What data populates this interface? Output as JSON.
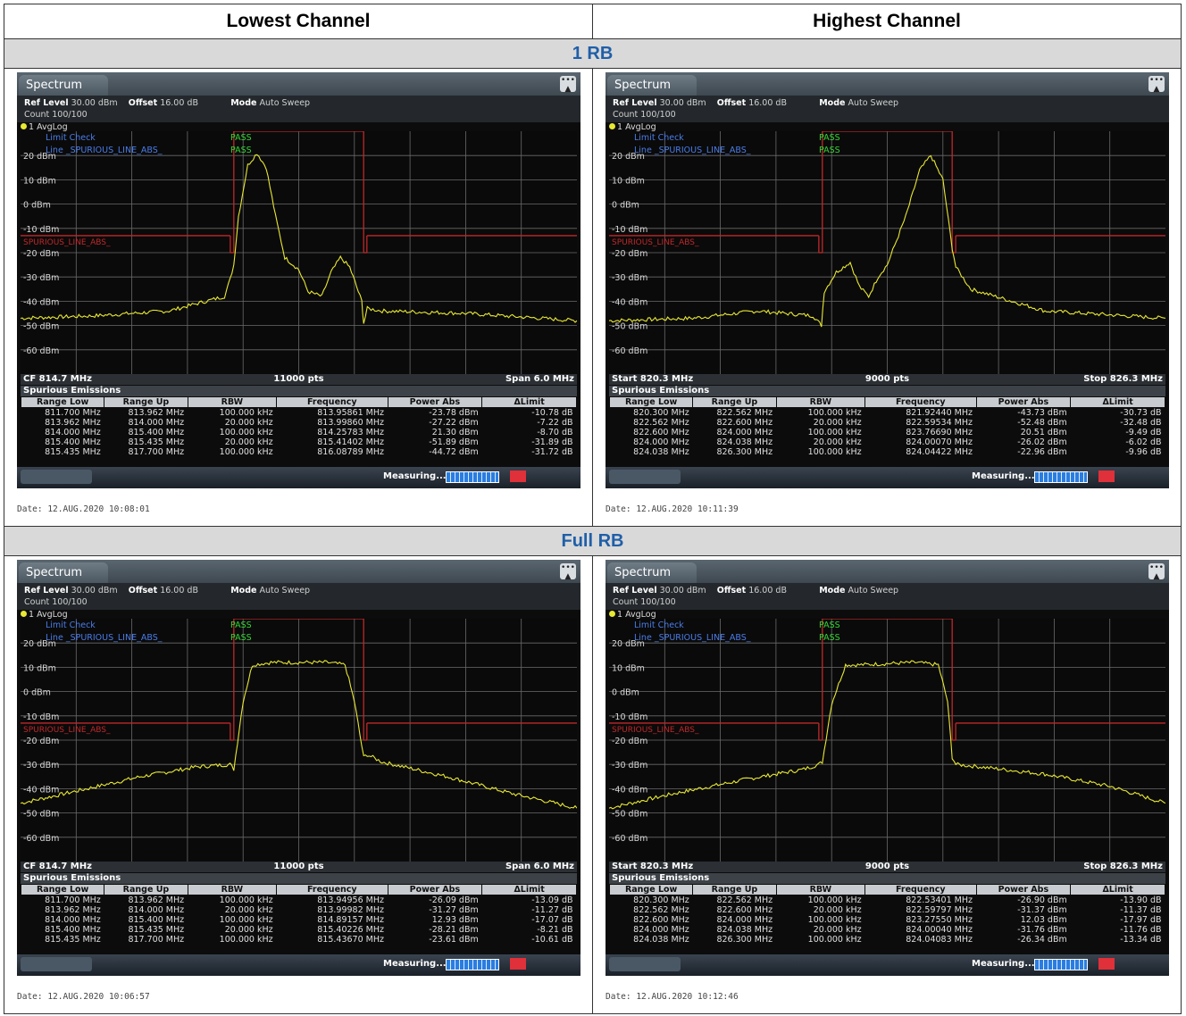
{
  "header": {
    "left": "Lowest Channel",
    "right": "Highest Channel"
  },
  "sections": [
    {
      "title": "1 RB",
      "panels": [
        0,
        1
      ]
    },
    {
      "title": "Full RB",
      "panels": [
        2,
        3
      ]
    }
  ],
  "colors": {
    "trace": "#e8e833",
    "limit": "#c0282a",
    "grid": "#6a6a6a",
    "pass": "#33d633",
    "label_blue": "#4a7de8"
  },
  "panels": [
    {
      "tab": "Spectrum",
      "ref_level_label": "Ref Level",
      "ref_level": "30.00 dBm",
      "offset_label": "Offset",
      "offset": "16.00 dB",
      "mode_label": "Mode",
      "mode": "Auto Sweep",
      "count": "Count 100/100",
      "trace": "1 AvgLog",
      "limit_check": "Limit Check",
      "limit_line": "Line _SPURIOUS_LINE_ABS_",
      "pass1": "PASS",
      "pass2": "PASS",
      "limit_label": "SPURIOUS_LINE_ABS_",
      "footer_left": "CF 814.7 MHz",
      "footer_center": "11000 pts",
      "footer_right": "Span 6.0 MHz",
      "spur_title": "Spurious Emissions",
      "status": "Measuring...",
      "date": "Date: 12.AUG.2020  10:08:01",
      "columns": [
        "Range Low",
        "Range Up",
        "RBW",
        "Frequency",
        "Power Abs",
        "ΔLimit"
      ],
      "rows": [
        [
          "811.700 MHz",
          "813.962 MHz",
          "100.000 kHz",
          "813.95861 MHz",
          "-23.78 dBm",
          "-10.78 dB"
        ],
        [
          "813.962 MHz",
          "814.000 MHz",
          "20.000 kHz",
          "813.99860 MHz",
          "-27.22 dBm",
          "-7.22 dB"
        ],
        [
          "814.000 MHz",
          "815.400 MHz",
          "100.000 kHz",
          "814.25783 MHz",
          "21.30 dBm",
          "-8.70 dB"
        ],
        [
          "815.400 MHz",
          "815.435 MHz",
          "20.000 kHz",
          "815.41402 MHz",
          "-51.89 dBm",
          "-31.89 dB"
        ],
        [
          "815.435 MHz",
          "817.700 MHz",
          "100.000 kHz",
          "816.08789 MHz",
          "-44.72 dBm",
          "-31.72 dB"
        ]
      ]
    },
    {
      "tab": "Spectrum",
      "ref_level_label": "Ref Level",
      "ref_level": "30.00 dBm",
      "offset_label": "Offset",
      "offset": "16.00 dB",
      "mode_label": "Mode",
      "mode": "Auto Sweep",
      "count": "Count 100/100",
      "trace": "1 AvgLog",
      "limit_check": "Limit Check",
      "limit_line": "Line _SPURIOUS_LINE_ABS_",
      "pass1": "PASS",
      "pass2": "PASS",
      "limit_label": "SPURIOUS_LINE_ABS_",
      "footer_left": "Start 820.3 MHz",
      "footer_center": "9000 pts",
      "footer_right": "Stop 826.3 MHz",
      "spur_title": "Spurious Emissions",
      "status": "Measuring...",
      "date": "Date: 12.AUG.2020  10:11:39",
      "columns": [
        "Range Low",
        "Range Up",
        "RBW",
        "Frequency",
        "Power Abs",
        "ΔLimit"
      ],
      "rows": [
        [
          "820.300 MHz",
          "822.562 MHz",
          "100.000 kHz",
          "821.92440 MHz",
          "-43.73 dBm",
          "-30.73 dB"
        ],
        [
          "822.562 MHz",
          "822.600 MHz",
          "20.000 kHz",
          "822.59534 MHz",
          "-52.48 dBm",
          "-32.48 dB"
        ],
        [
          "822.600 MHz",
          "824.000 MHz",
          "100.000 kHz",
          "823.76690 MHz",
          "20.51 dBm",
          "-9.49 dB"
        ],
        [
          "824.000 MHz",
          "824.038 MHz",
          "20.000 kHz",
          "824.00070 MHz",
          "-26.02 dBm",
          "-6.02 dB"
        ],
        [
          "824.038 MHz",
          "826.300 MHz",
          "100.000 kHz",
          "824.04422 MHz",
          "-22.96 dBm",
          "-9.96 dB"
        ]
      ]
    },
    {
      "tab": "Spectrum",
      "ref_level_label": "Ref Level",
      "ref_level": "30.00 dBm",
      "offset_label": "Offset",
      "offset": "16.00 dB",
      "mode_label": "Mode",
      "mode": "Auto Sweep",
      "count": "Count 100/100",
      "trace": "1 AvgLog",
      "limit_check": "Limit Check",
      "limit_line": "Line _SPURIOUS_LINE_ABS_",
      "pass1": "PASS",
      "pass2": "PASS",
      "limit_label": "SPURIOUS_LINE_ABS_",
      "footer_left": "CF 814.7 MHz",
      "footer_center": "11000 pts",
      "footer_right": "Span 6.0 MHz",
      "spur_title": "Spurious Emissions",
      "status": "Measuring...",
      "date": "Date: 12.AUG.2020  10:06:57",
      "columns": [
        "Range Low",
        "Range Up",
        "RBW",
        "Frequency",
        "Power Abs",
        "ΔLimit"
      ],
      "rows": [
        [
          "811.700 MHz",
          "813.962 MHz",
          "100.000 kHz",
          "813.94956 MHz",
          "-26.09 dBm",
          "-13.09 dB"
        ],
        [
          "813.962 MHz",
          "814.000 MHz",
          "20.000 kHz",
          "813.99982 MHz",
          "-31.27 dBm",
          "-11.27 dB"
        ],
        [
          "814.000 MHz",
          "815.400 MHz",
          "100.000 kHz",
          "814.89157 MHz",
          "12.93 dBm",
          "-17.07 dB"
        ],
        [
          "815.400 MHz",
          "815.435 MHz",
          "20.000 kHz",
          "815.40226 MHz",
          "-28.21 dBm",
          "-8.21 dB"
        ],
        [
          "815.435 MHz",
          "817.700 MHz",
          "100.000 kHz",
          "815.43670 MHz",
          "-23.61 dBm",
          "-10.61 dB"
        ]
      ]
    },
    {
      "tab": "Spectrum",
      "ref_level_label": "Ref Level",
      "ref_level": "30.00 dBm",
      "offset_label": "Offset",
      "offset": "16.00 dB",
      "mode_label": "Mode",
      "mode": "Auto Sweep",
      "count": "Count 100/100",
      "trace": "1 AvgLog",
      "limit_check": "Limit Check",
      "limit_line": "Line _SPURIOUS_LINE_ABS_",
      "pass1": "PASS",
      "pass2": "PASS",
      "limit_label": "SPURIOUS_LINE_ABS_",
      "footer_left": "Start 820.3 MHz",
      "footer_center": "9000 pts",
      "footer_right": "Stop 826.3 MHz",
      "spur_title": "Spurious Emissions",
      "status": "Measuring...",
      "date": "Date: 12.AUG.2020  10:12:46",
      "columns": [
        "Range Low",
        "Range Up",
        "RBW",
        "Frequency",
        "Power Abs",
        "ΔLimit"
      ],
      "rows": [
        [
          "820.300 MHz",
          "822.562 MHz",
          "100.000 kHz",
          "822.53401 MHz",
          "-26.90 dBm",
          "-13.90 dB"
        ],
        [
          "822.562 MHz",
          "822.600 MHz",
          "20.000 kHz",
          "822.59797 MHz",
          "-31.37 dBm",
          "-11.37 dB"
        ],
        [
          "822.600 MHz",
          "824.000 MHz",
          "100.000 kHz",
          "823.27550 MHz",
          "12.03 dBm",
          "-17.97 dB"
        ],
        [
          "824.000 MHz",
          "824.038 MHz",
          "20.000 kHz",
          "824.00040 MHz",
          "-31.76 dBm",
          "-11.76 dB"
        ],
        [
          "824.038 MHz",
          "826.300 MHz",
          "100.000 kHz",
          "824.04083 MHz",
          "-26.34 dBm",
          "-13.34 dB"
        ]
      ]
    }
  ],
  "chart_data": [
    {
      "type": "line",
      "ylim": [
        -70,
        30
      ],
      "xlim": [
        811.7,
        817.7
      ],
      "y_tick_labels": [
        "20 dBm",
        "10 dBm",
        "0 dBm",
        "-10 dBm",
        "-20 dBm",
        "-30 dBm",
        "-40 dBm",
        "-50 dBm",
        "-60 dBm"
      ],
      "limit_segments": [
        [
          811.7,
          813.962,
          -13
        ],
        [
          813.962,
          814.0,
          -20
        ],
        [
          814.0,
          815.4,
          30
        ],
        [
          815.4,
          815.435,
          -20
        ],
        [
          815.435,
          817.7,
          -13
        ]
      ],
      "x": [
        811.7,
        812.5,
        813.3,
        813.9,
        813.96,
        814.0,
        814.05,
        814.15,
        814.25,
        814.35,
        814.45,
        814.55,
        814.7,
        814.8,
        814.95,
        815.05,
        815.15,
        815.25,
        815.38,
        815.4,
        815.44,
        815.6,
        816.5,
        817.7
      ],
      "y": [
        -47,
        -46,
        -44,
        -38,
        -31,
        -25,
        -5,
        16,
        21,
        15,
        -5,
        -22,
        -27,
        -36,
        -38,
        -28,
        -22,
        -26,
        -40,
        -49,
        -43,
        -44,
        -45,
        -48
      ]
    },
    {
      "type": "line",
      "ylim": [
        -70,
        30
      ],
      "xlim": [
        820.3,
        826.3
      ],
      "y_tick_labels": [
        "20 dBm",
        "10 dBm",
        "0 dBm",
        "-10 dBm",
        "-20 dBm",
        "-30 dBm",
        "-40 dBm",
        "-50 dBm",
        "-60 dBm"
      ],
      "limit_segments": [
        [
          820.3,
          822.562,
          -13
        ],
        [
          822.562,
          822.6,
          -20
        ],
        [
          822.6,
          824.0,
          30
        ],
        [
          824.0,
          824.038,
          -20
        ],
        [
          824.038,
          826.3,
          -13
        ]
      ],
      "x": [
        820.3,
        821.2,
        821.9,
        822.5,
        822.59,
        822.62,
        822.75,
        822.9,
        823.0,
        823.1,
        823.2,
        823.3,
        823.5,
        823.65,
        823.77,
        823.9,
        824.0,
        824.04,
        824.2,
        825.0,
        826.3
      ],
      "y": [
        -48,
        -47,
        -44,
        -46,
        -50,
        -36,
        -28,
        -24,
        -34,
        -38,
        -30,
        -25,
        -5,
        14,
        20,
        10,
        -18,
        -26,
        -35,
        -44,
        -47
      ]
    },
    {
      "type": "line",
      "ylim": [
        -70,
        30
      ],
      "xlim": [
        811.7,
        817.7
      ],
      "y_tick_labels": [
        "20 dBm",
        "10 dBm",
        "0 dBm",
        "-10 dBm",
        "-20 dBm",
        "-30 dBm",
        "-40 dBm",
        "-50 dBm",
        "-60 dBm"
      ],
      "limit_segments": [
        [
          811.7,
          813.962,
          -13
        ],
        [
          813.962,
          814.0,
          -20
        ],
        [
          814.0,
          815.4,
          30
        ],
        [
          815.4,
          815.435,
          -20
        ],
        [
          815.435,
          817.7,
          -13
        ]
      ],
      "x": [
        811.7,
        812.3,
        813.0,
        813.6,
        813.96,
        814.0,
        814.1,
        814.2,
        814.4,
        815.0,
        815.2,
        815.3,
        815.4,
        815.44,
        815.6,
        816.3,
        817.0,
        817.7
      ],
      "y": [
        -46,
        -41,
        -35,
        -31,
        -30,
        -32,
        -4,
        11,
        12,
        12,
        11,
        -4,
        -27,
        -26,
        -29,
        -35,
        -42,
        -48
      ]
    },
    {
      "type": "line",
      "ylim": [
        -70,
        30
      ],
      "xlim": [
        820.3,
        826.3
      ],
      "y_tick_labels": [
        "20 dBm",
        "10 dBm",
        "0 dBm",
        "-10 dBm",
        "-20 dBm",
        "-30 dBm",
        "-40 dBm",
        "-50 dBm",
        "-60 dBm"
      ],
      "limit_segments": [
        [
          820.3,
          822.562,
          -13
        ],
        [
          822.562,
          822.6,
          -20
        ],
        [
          822.6,
          824.0,
          30
        ],
        [
          824.0,
          824.038,
          -20
        ],
        [
          824.038,
          826.3,
          -13
        ]
      ],
      "x": [
        820.3,
        821.0,
        821.8,
        822.4,
        822.56,
        822.6,
        822.7,
        822.85,
        823.0,
        823.6,
        823.85,
        823.95,
        824.0,
        824.04,
        824.3,
        825.0,
        825.7,
        826.3
      ],
      "y": [
        -48,
        -42,
        -36,
        -32,
        -30,
        -29,
        -5,
        11,
        11,
        12,
        11,
        -4,
        -27,
        -30,
        -31,
        -34,
        -39,
        -46
      ]
    }
  ]
}
